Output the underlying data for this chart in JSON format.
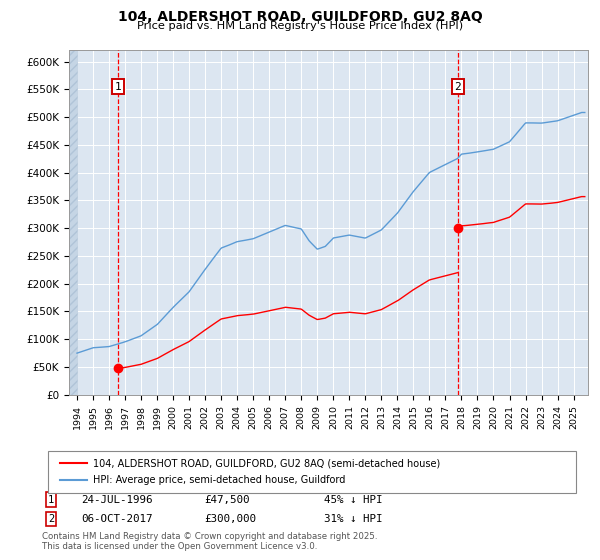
{
  "title": "104, ALDERSHOT ROAD, GUILDFORD, GU2 8AQ",
  "subtitle": "Price paid vs. HM Land Registry's House Price Index (HPI)",
  "sale1_date": 1996.56,
  "sale1_price": 47500,
  "sale2_date": 2017.77,
  "sale2_price": 300000,
  "ylim": [
    0,
    620000
  ],
  "xlim": [
    1993.5,
    2025.9
  ],
  "yticks": [
    0,
    50000,
    100000,
    150000,
    200000,
    250000,
    300000,
    350000,
    400000,
    450000,
    500000,
    550000,
    600000
  ],
  "ytick_labels": [
    "£0",
    "£50K",
    "£100K",
    "£150K",
    "£200K",
    "£250K",
    "£300K",
    "£350K",
    "£400K",
    "£450K",
    "£500K",
    "£550K",
    "£600K"
  ],
  "legend_line1": "104, ALDERSHOT ROAD, GUILDFORD, GU2 8AQ (semi-detached house)",
  "legend_line2": "HPI: Average price, semi-detached house, Guildford",
  "hpi_color": "#5b9bd5",
  "price_color": "#ff0000",
  "bg_color": "#dce6f1",
  "grid_color": "#ffffff",
  "dashed_line_color": "#ff0000",
  "hpi_waypoints": [
    [
      1994.0,
      75000
    ],
    [
      1995.0,
      85000
    ],
    [
      1996.0,
      88000
    ],
    [
      1997.0,
      97000
    ],
    [
      1998.0,
      108000
    ],
    [
      1999.0,
      128000
    ],
    [
      2000.0,
      158000
    ],
    [
      2001.0,
      185000
    ],
    [
      2002.0,
      225000
    ],
    [
      2003.0,
      265000
    ],
    [
      2004.0,
      278000
    ],
    [
      2005.0,
      283000
    ],
    [
      2006.0,
      295000
    ],
    [
      2007.0,
      308000
    ],
    [
      2008.0,
      302000
    ],
    [
      2008.5,
      280000
    ],
    [
      2009.0,
      265000
    ],
    [
      2009.5,
      270000
    ],
    [
      2010.0,
      285000
    ],
    [
      2011.0,
      290000
    ],
    [
      2012.0,
      285000
    ],
    [
      2013.0,
      300000
    ],
    [
      2014.0,
      330000
    ],
    [
      2015.0,
      370000
    ],
    [
      2016.0,
      405000
    ],
    [
      2017.0,
      420000
    ],
    [
      2017.77,
      432000
    ],
    [
      2018.0,
      440000
    ],
    [
      2019.0,
      445000
    ],
    [
      2020.0,
      450000
    ],
    [
      2021.0,
      465000
    ],
    [
      2022.0,
      500000
    ],
    [
      2023.0,
      500000
    ],
    [
      2024.0,
      505000
    ],
    [
      2025.5,
      520000
    ]
  ],
  "footnote1": "Contains HM Land Registry data © Crown copyright and database right 2025.",
  "footnote2": "This data is licensed under the Open Government Licence v3.0."
}
